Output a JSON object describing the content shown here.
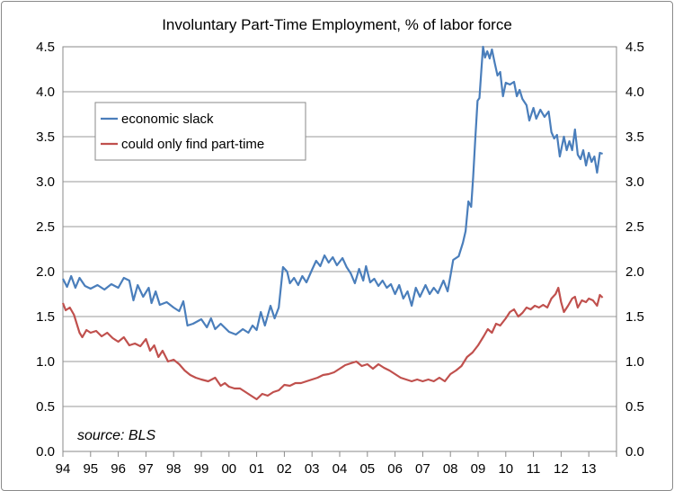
{
  "chart_data": {
    "type": "line",
    "title": "Involuntary Part-Time Employment, % of labor force",
    "source_note": "source: BLS",
    "x_tick_labels": [
      "94",
      "95",
      "96",
      "97",
      "98",
      "99",
      "00",
      "01",
      "02",
      "03",
      "04",
      "05",
      "06",
      "07",
      "08",
      "09",
      "10",
      "11",
      "12",
      "13"
    ],
    "x_range": [
      1994.0,
      2014.0
    ],
    "y_ticks": [
      0.0,
      0.5,
      1.0,
      1.5,
      2.0,
      2.5,
      3.0,
      3.5,
      4.0,
      4.5
    ],
    "y_tick_labels": [
      "0.0",
      "0.5",
      "1.0",
      "1.5",
      "2.0",
      "2.5",
      "3.0",
      "3.5",
      "4.0",
      "4.5"
    ],
    "ylim": [
      0.0,
      4.5
    ],
    "grid": true,
    "legend_position": "upper-left",
    "series": [
      {
        "name": "economic slack",
        "color": "#4a7ebb",
        "points": [
          [
            1994.0,
            1.92
          ],
          [
            1994.15,
            1.83
          ],
          [
            1994.3,
            1.95
          ],
          [
            1994.45,
            1.82
          ],
          [
            1994.6,
            1.93
          ],
          [
            1994.8,
            1.84
          ],
          [
            1995.0,
            1.81
          ],
          [
            1995.25,
            1.85
          ],
          [
            1995.5,
            1.8
          ],
          [
            1995.75,
            1.86
          ],
          [
            1996.0,
            1.82
          ],
          [
            1996.2,
            1.93
          ],
          [
            1996.4,
            1.9
          ],
          [
            1996.55,
            1.68
          ],
          [
            1996.7,
            1.85
          ],
          [
            1996.9,
            1.72
          ],
          [
            1997.1,
            1.82
          ],
          [
            1997.2,
            1.65
          ],
          [
            1997.35,
            1.78
          ],
          [
            1997.5,
            1.63
          ],
          [
            1997.75,
            1.66
          ],
          [
            1998.0,
            1.6
          ],
          [
            1998.2,
            1.56
          ],
          [
            1998.35,
            1.67
          ],
          [
            1998.5,
            1.4
          ],
          [
            1998.7,
            1.42
          ],
          [
            1999.0,
            1.47
          ],
          [
            1999.2,
            1.38
          ],
          [
            1999.35,
            1.48
          ],
          [
            1999.5,
            1.36
          ],
          [
            1999.7,
            1.42
          ],
          [
            2000.0,
            1.33
          ],
          [
            2000.25,
            1.3
          ],
          [
            2000.5,
            1.36
          ],
          [
            2000.7,
            1.32
          ],
          [
            2000.85,
            1.4
          ],
          [
            2001.0,
            1.35
          ],
          [
            2001.15,
            1.55
          ],
          [
            2001.3,
            1.4
          ],
          [
            2001.5,
            1.62
          ],
          [
            2001.65,
            1.48
          ],
          [
            2001.8,
            1.6
          ],
          [
            2001.95,
            2.05
          ],
          [
            2002.1,
            2.0
          ],
          [
            2002.2,
            1.87
          ],
          [
            2002.35,
            1.93
          ],
          [
            2002.5,
            1.85
          ],
          [
            2002.65,
            1.95
          ],
          [
            2002.8,
            1.88
          ],
          [
            2003.0,
            2.02
          ],
          [
            2003.15,
            2.12
          ],
          [
            2003.3,
            2.06
          ],
          [
            2003.45,
            2.18
          ],
          [
            2003.6,
            2.1
          ],
          [
            2003.75,
            2.16
          ],
          [
            2003.9,
            2.07
          ],
          [
            2004.1,
            2.15
          ],
          [
            2004.25,
            2.05
          ],
          [
            2004.4,
            1.98
          ],
          [
            2004.55,
            1.87
          ],
          [
            2004.7,
            2.03
          ],
          [
            2004.85,
            1.9
          ],
          [
            2004.95,
            2.06
          ],
          [
            2005.1,
            1.88
          ],
          [
            2005.25,
            1.92
          ],
          [
            2005.4,
            1.84
          ],
          [
            2005.55,
            1.9
          ],
          [
            2005.7,
            1.82
          ],
          [
            2005.85,
            1.86
          ],
          [
            2006.0,
            1.75
          ],
          [
            2006.15,
            1.85
          ],
          [
            2006.3,
            1.7
          ],
          [
            2006.45,
            1.78
          ],
          [
            2006.6,
            1.62
          ],
          [
            2006.75,
            1.82
          ],
          [
            2006.9,
            1.72
          ],
          [
            2007.1,
            1.85
          ],
          [
            2007.25,
            1.75
          ],
          [
            2007.4,
            1.82
          ],
          [
            2007.55,
            1.76
          ],
          [
            2007.75,
            1.9
          ],
          [
            2007.9,
            1.78
          ],
          [
            2008.0,
            1.95
          ],
          [
            2008.1,
            2.13
          ],
          [
            2008.3,
            2.17
          ],
          [
            2008.45,
            2.32
          ],
          [
            2008.55,
            2.45
          ],
          [
            2008.65,
            2.78
          ],
          [
            2008.75,
            2.72
          ],
          [
            2008.82,
            3.05
          ],
          [
            2008.9,
            3.48
          ],
          [
            2008.98,
            3.9
          ],
          [
            2009.05,
            3.93
          ],
          [
            2009.12,
            4.25
          ],
          [
            2009.18,
            4.5
          ],
          [
            2009.25,
            4.38
          ],
          [
            2009.33,
            4.45
          ],
          [
            2009.42,
            4.37
          ],
          [
            2009.5,
            4.47
          ],
          [
            2009.6,
            4.32
          ],
          [
            2009.7,
            4.18
          ],
          [
            2009.8,
            4.22
          ],
          [
            2009.9,
            3.95
          ],
          [
            2010.0,
            4.1
          ],
          [
            2010.15,
            4.08
          ],
          [
            2010.3,
            4.11
          ],
          [
            2010.4,
            3.95
          ],
          [
            2010.5,
            4.02
          ],
          [
            2010.6,
            3.92
          ],
          [
            2010.75,
            3.85
          ],
          [
            2010.85,
            3.68
          ],
          [
            2011.0,
            3.82
          ],
          [
            2011.1,
            3.7
          ],
          [
            2011.25,
            3.8
          ],
          [
            2011.4,
            3.72
          ],
          [
            2011.55,
            3.78
          ],
          [
            2011.65,
            3.55
          ],
          [
            2011.75,
            3.48
          ],
          [
            2011.85,
            3.52
          ],
          [
            2011.95,
            3.28
          ],
          [
            2012.1,
            3.5
          ],
          [
            2012.2,
            3.35
          ],
          [
            2012.3,
            3.45
          ],
          [
            2012.4,
            3.35
          ],
          [
            2012.5,
            3.58
          ],
          [
            2012.6,
            3.3
          ],
          [
            2012.7,
            3.25
          ],
          [
            2012.8,
            3.35
          ],
          [
            2012.9,
            3.18
          ],
          [
            2013.0,
            3.32
          ],
          [
            2013.1,
            3.22
          ],
          [
            2013.2,
            3.28
          ],
          [
            2013.3,
            3.1
          ],
          [
            2013.4,
            3.32
          ],
          [
            2013.5,
            3.31
          ]
        ]
      },
      {
        "name": "could only find part-time",
        "color": "#c0504d",
        "points": [
          [
            1994.0,
            1.65
          ],
          [
            1994.1,
            1.57
          ],
          [
            1994.25,
            1.6
          ],
          [
            1994.4,
            1.52
          ],
          [
            1994.6,
            1.32
          ],
          [
            1994.7,
            1.27
          ],
          [
            1994.85,
            1.35
          ],
          [
            1995.0,
            1.32
          ],
          [
            1995.2,
            1.34
          ],
          [
            1995.4,
            1.28
          ],
          [
            1995.6,
            1.32
          ],
          [
            1995.8,
            1.26
          ],
          [
            1996.0,
            1.22
          ],
          [
            1996.2,
            1.27
          ],
          [
            1996.4,
            1.18
          ],
          [
            1996.6,
            1.2
          ],
          [
            1996.8,
            1.17
          ],
          [
            1997.0,
            1.25
          ],
          [
            1997.15,
            1.12
          ],
          [
            1997.3,
            1.18
          ],
          [
            1997.45,
            1.05
          ],
          [
            1997.6,
            1.12
          ],
          [
            1997.8,
            1.0
          ],
          [
            1998.0,
            1.02
          ],
          [
            1998.2,
            0.97
          ],
          [
            1998.4,
            0.9
          ],
          [
            1998.6,
            0.85
          ],
          [
            1998.8,
            0.82
          ],
          [
            1999.0,
            0.8
          ],
          [
            1999.25,
            0.78
          ],
          [
            1999.5,
            0.82
          ],
          [
            1999.7,
            0.73
          ],
          [
            1999.85,
            0.76
          ],
          [
            2000.0,
            0.72
          ],
          [
            2000.2,
            0.7
          ],
          [
            2000.4,
            0.7
          ],
          [
            2000.6,
            0.66
          ],
          [
            2000.8,
            0.62
          ],
          [
            2001.0,
            0.58
          ],
          [
            2001.2,
            0.64
          ],
          [
            2001.4,
            0.62
          ],
          [
            2001.6,
            0.66
          ],
          [
            2001.8,
            0.68
          ],
          [
            2002.0,
            0.74
          ],
          [
            2002.2,
            0.73
          ],
          [
            2002.4,
            0.76
          ],
          [
            2002.6,
            0.76
          ],
          [
            2002.8,
            0.78
          ],
          [
            2003.0,
            0.8
          ],
          [
            2003.2,
            0.82
          ],
          [
            2003.4,
            0.85
          ],
          [
            2003.6,
            0.86
          ],
          [
            2003.8,
            0.88
          ],
          [
            2004.0,
            0.92
          ],
          [
            2004.2,
            0.96
          ],
          [
            2004.4,
            0.98
          ],
          [
            2004.6,
            1.0
          ],
          [
            2004.8,
            0.95
          ],
          [
            2005.0,
            0.97
          ],
          [
            2005.2,
            0.92
          ],
          [
            2005.4,
            0.97
          ],
          [
            2005.6,
            0.93
          ],
          [
            2005.8,
            0.9
          ],
          [
            2006.0,
            0.86
          ],
          [
            2006.2,
            0.82
          ],
          [
            2006.4,
            0.8
          ],
          [
            2006.6,
            0.78
          ],
          [
            2006.8,
            0.8
          ],
          [
            2007.0,
            0.78
          ],
          [
            2007.2,
            0.8
          ],
          [
            2007.4,
            0.78
          ],
          [
            2007.6,
            0.82
          ],
          [
            2007.8,
            0.78
          ],
          [
            2008.0,
            0.86
          ],
          [
            2008.2,
            0.9
          ],
          [
            2008.4,
            0.95
          ],
          [
            2008.6,
            1.05
          ],
          [
            2008.8,
            1.1
          ],
          [
            2009.0,
            1.18
          ],
          [
            2009.2,
            1.28
          ],
          [
            2009.35,
            1.36
          ],
          [
            2009.5,
            1.32
          ],
          [
            2009.65,
            1.42
          ],
          [
            2009.8,
            1.4
          ],
          [
            2010.0,
            1.48
          ],
          [
            2010.15,
            1.55
          ],
          [
            2010.3,
            1.58
          ],
          [
            2010.45,
            1.5
          ],
          [
            2010.6,
            1.54
          ],
          [
            2010.75,
            1.6
          ],
          [
            2010.9,
            1.58
          ],
          [
            2011.05,
            1.62
          ],
          [
            2011.2,
            1.6
          ],
          [
            2011.35,
            1.63
          ],
          [
            2011.5,
            1.6
          ],
          [
            2011.65,
            1.7
          ],
          [
            2011.8,
            1.75
          ],
          [
            2011.9,
            1.82
          ],
          [
            2012.0,
            1.66
          ],
          [
            2012.1,
            1.55
          ],
          [
            2012.25,
            1.62
          ],
          [
            2012.4,
            1.7
          ],
          [
            2012.5,
            1.72
          ],
          [
            2012.6,
            1.6
          ],
          [
            2012.75,
            1.68
          ],
          [
            2012.9,
            1.66
          ],
          [
            2013.0,
            1.7
          ],
          [
            2013.15,
            1.68
          ],
          [
            2013.3,
            1.62
          ],
          [
            2013.4,
            1.74
          ],
          [
            2013.5,
            1.71
          ]
        ]
      }
    ]
  }
}
